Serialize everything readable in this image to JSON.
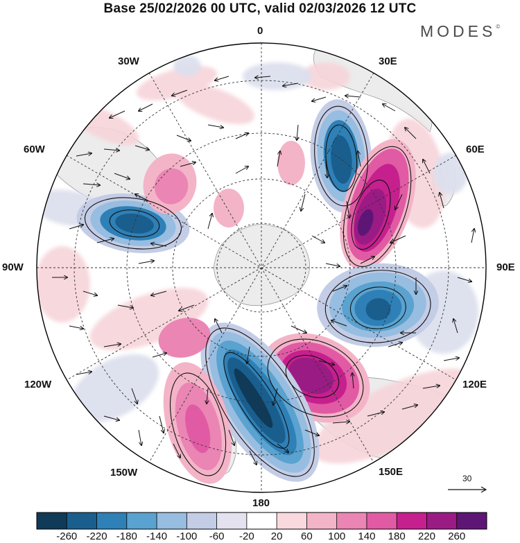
{
  "title": "Base 25/02/2026 00 UTC, valid 02/03/2026 12 UTC",
  "brand": "MODES",
  "brand_mark": "©",
  "longitude_labels": {
    "lon_0": "0",
    "lon_30e": "30E",
    "lon_60e": "60E",
    "lon_90e": "90E",
    "lon_120e": "120E",
    "lon_150e": "150E",
    "lon_180": "180",
    "lon_150w": "150W",
    "lon_120w": "120W",
    "lon_90w": "90W",
    "lon_60w": "60W",
    "lon_30w": "30W"
  },
  "reference_vector": {
    "label": "30"
  },
  "colorbar": {
    "labels": [
      "-260",
      "-220",
      "-180",
      "-140",
      "-100",
      "-60",
      "-20",
      "20",
      "60",
      "100",
      "140",
      "180",
      "220",
      "260"
    ],
    "colors": [
      "#0f3a58",
      "#1a5e8e",
      "#2e80b6",
      "#5aa2cf",
      "#97bde0",
      "#c4cde6",
      "#e4e2ef",
      "#ffffff",
      "#f9d9de",
      "#f3b4c8",
      "#eb85b4",
      "#e15aa4",
      "#c5208e",
      "#9a1b84",
      "#5d1676"
    ]
  },
  "map_legend": {
    "projection": "south-polar-stereographic",
    "continents_color": "#eeeeee",
    "coastline_color": "#888888",
    "graticule_color": "#333333"
  }
}
